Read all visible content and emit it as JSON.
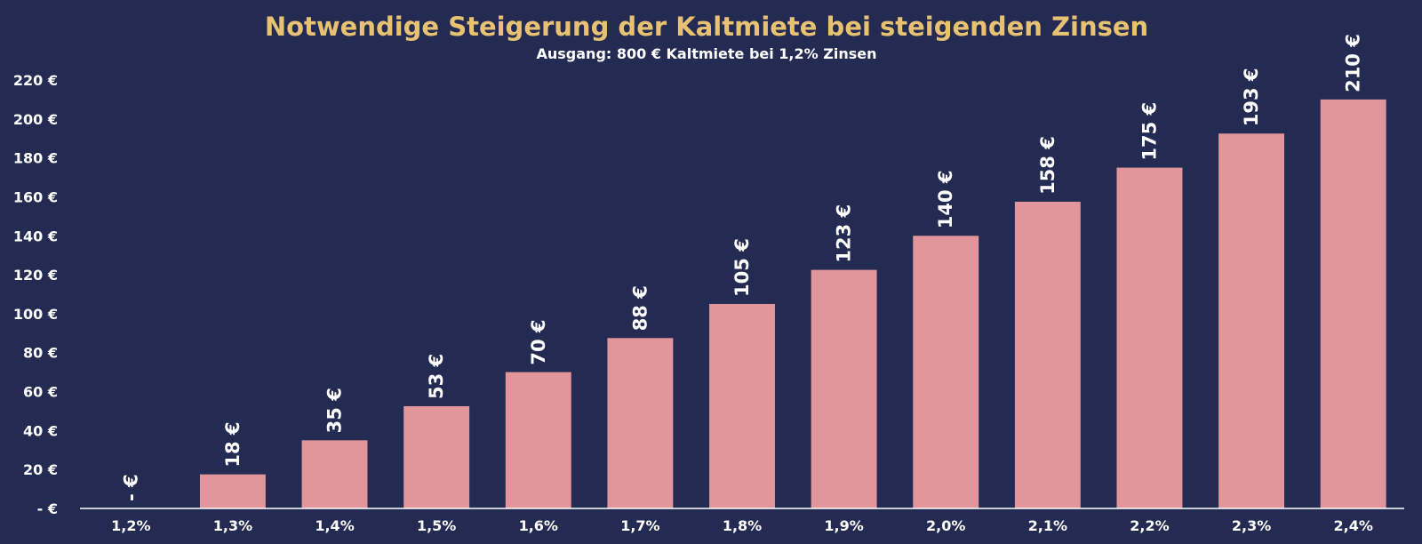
{
  "chart_data": {
    "type": "bar",
    "title": "Notwendige Steigerung der Kaltmiete bei steigenden Zinsen",
    "subtitle": "Ausgang: 800 € Kaltmiete bei 1,2% Zinsen",
    "categories": [
      "1,2%",
      "1,3%",
      "1,4%",
      "1,5%",
      "1,6%",
      "1,7%",
      "1,8%",
      "1,9%",
      "2,0%",
      "2,1%",
      "2,2%",
      "2,3%",
      "2,4%"
    ],
    "values": [
      0,
      17.5,
      35,
      52.5,
      70,
      87.5,
      105,
      122.5,
      140,
      157.5,
      175,
      192.5,
      210
    ],
    "data_labels": [
      "- €",
      "18 €",
      "35 €",
      "53 €",
      "70 €",
      "88 €",
      "105 €",
      "123 €",
      "140 €",
      "158 €",
      "175 €",
      "193 €",
      "210 €"
    ],
    "y_ticks": [
      0,
      20,
      40,
      60,
      80,
      100,
      120,
      140,
      160,
      180,
      200,
      220
    ],
    "y_tick_labels": [
      "-  €",
      "20 €",
      "40 €",
      "60 €",
      "80 €",
      "100 €",
      "120 €",
      "140 €",
      "160 €",
      "180 €",
      "200 €",
      "220 €"
    ],
    "ylim": [
      0,
      220
    ],
    "grid": false,
    "legend": "none",
    "colors": {
      "background": "#232b52",
      "bar": "#e2959b",
      "title": "#e8c272",
      "text": "#ffffff",
      "axis": "#ffffff"
    }
  }
}
